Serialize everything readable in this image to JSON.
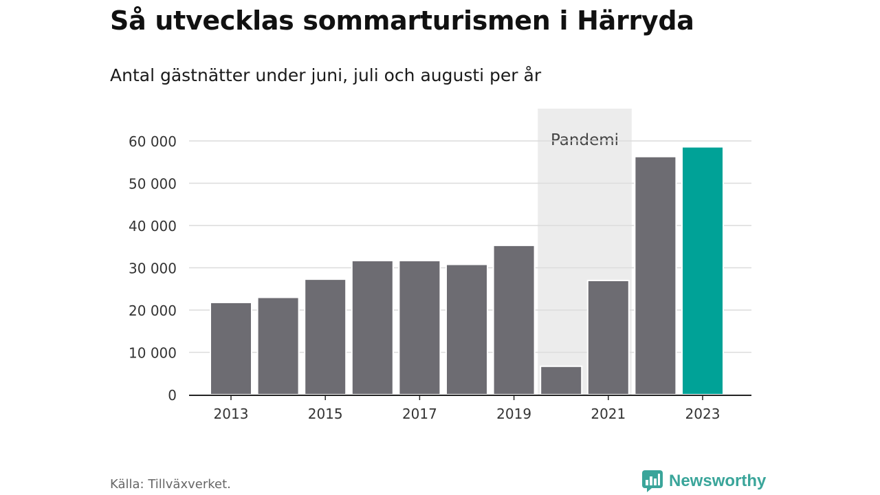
{
  "title": "Så utvecklas sommarturismen i Härryda",
  "subtitle": "Antal gästnätter under juni, juli och augusti per år",
  "source": "Källa: Tillväxverket.",
  "brand": "Newsworthy",
  "colors": {
    "bar": "#6d6c72",
    "highlight": "#00a297",
    "shade": "#ececec",
    "grid": "#dcdcdc",
    "brand": "#3aa59a"
  },
  "chart_data": {
    "type": "bar",
    "categories": [
      "2013",
      "2014",
      "2015",
      "2016",
      "2017",
      "2018",
      "2019",
      "2020",
      "2021",
      "2022",
      "2023"
    ],
    "values": [
      21800,
      23000,
      27300,
      31700,
      31700,
      30800,
      35300,
      6700,
      27000,
      56300,
      58600
    ],
    "highlight_category": "2023",
    "x_tick_labels": [
      "2013",
      "2015",
      "2017",
      "2019",
      "2021",
      "2023"
    ],
    "y_ticks": [
      0,
      10000,
      20000,
      30000,
      40000,
      50000,
      60000
    ],
    "y_tick_labels": [
      "0",
      "10 000",
      "20 000",
      "30 000",
      "40 000",
      "50 000",
      "60 000"
    ],
    "ylim": [
      0,
      60000
    ],
    "grid": true,
    "annotation": {
      "label": "Pandemi",
      "from": "2020",
      "to": "2021"
    }
  }
}
